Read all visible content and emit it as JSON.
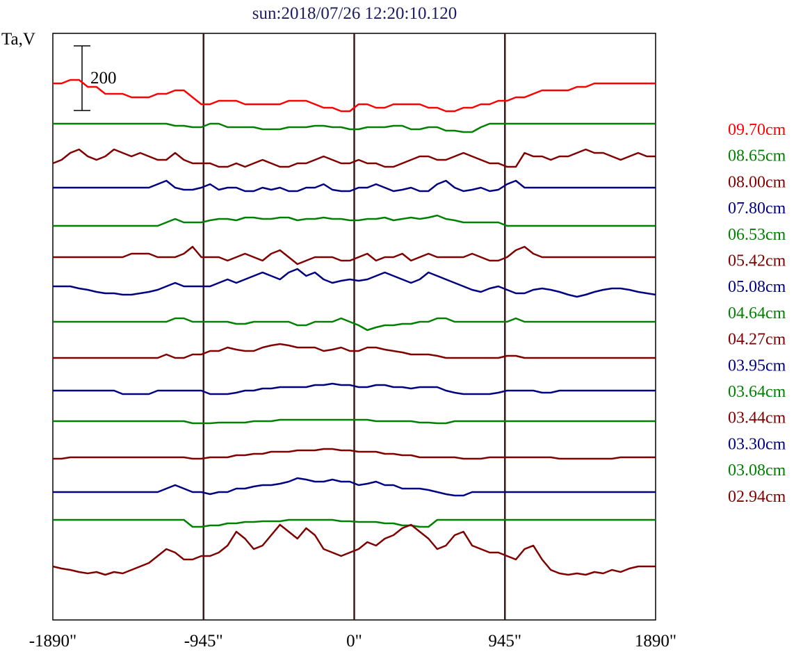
{
  "chart_data": {
    "type": "line",
    "title": "sun:2018/07/26 12:20:10.120",
    "ylabel": "Ta,V",
    "xlabel": "",
    "x_ticks": [
      "-1890\"",
      "-945\"",
      "0\"",
      "945\"",
      "1890\""
    ],
    "x_tick_values": [
      -1890,
      -945,
      0,
      945,
      1890
    ],
    "xlim": [
      -1890,
      1890
    ],
    "vertical_lines": [
      -945,
      0,
      945
    ],
    "scale_bar": {
      "label": "200",
      "value": 200
    },
    "colors": {
      "red": "#ff0000",
      "green": "#008000",
      "maroon": "#800000",
      "navy": "#000080",
      "axis": "#000000",
      "vline": "#3a1a1a",
      "title": "#1a1a66"
    },
    "series": [
      {
        "name": "09.70cm",
        "color": "#ff0000",
        "baseline": 120,
        "y": [
          0,
          0,
          5,
          5,
          -5,
          -5,
          -15,
          -15,
          -15,
          -20,
          -20,
          -20,
          -15,
          -15,
          -10,
          -10,
          -20,
          -30,
          -30,
          -25,
          -25,
          -25,
          -30,
          -30,
          -30,
          -30,
          -30,
          -25,
          -25,
          -25,
          -30,
          -35,
          -35,
          -40,
          -40,
          -30,
          -30,
          -35,
          -35,
          -30,
          -30,
          -30,
          -30,
          -35,
          -35,
          -40,
          -40,
          -35,
          -35,
          -30,
          -30,
          -25,
          -25,
          -20,
          -20,
          -15,
          -10,
          -10,
          -10,
          -10,
          -5,
          -5,
          0,
          0,
          0,
          0,
          0,
          0,
          0,
          0
        ]
      },
      {
        "name": "08.65cm",
        "color": "#008000",
        "baseline": 178,
        "y": [
          0,
          0,
          0,
          0,
          0,
          0,
          0,
          0,
          0,
          0,
          0,
          0,
          0,
          0,
          -3,
          -3,
          -5,
          -5,
          0,
          0,
          -5,
          -5,
          -5,
          -5,
          -8,
          -8,
          -8,
          -5,
          -5,
          -5,
          -3,
          -3,
          -5,
          -5,
          -8,
          -8,
          -5,
          -5,
          -5,
          -3,
          -3,
          -8,
          -8,
          -5,
          -5,
          -10,
          -10,
          -12,
          -12,
          -5,
          0,
          0,
          0,
          0,
          0,
          0,
          0,
          0,
          0,
          0,
          0,
          0,
          0,
          0,
          0,
          0,
          0,
          0,
          0,
          0
        ]
      },
      {
        "name": "08.00cm",
        "color": "#800000",
        "baseline": 225,
        "y": [
          -10,
          -5,
          5,
          10,
          0,
          -5,
          0,
          10,
          5,
          0,
          5,
          0,
          -5,
          -5,
          5,
          -5,
          -10,
          -10,
          -10,
          -15,
          -15,
          -10,
          -15,
          -10,
          -5,
          -10,
          -15,
          -15,
          -10,
          -10,
          -5,
          0,
          -5,
          -10,
          -10,
          -5,
          -10,
          -10,
          -15,
          -15,
          -10,
          -5,
          0,
          0,
          -5,
          -5,
          0,
          5,
          0,
          -5,
          -10,
          -10,
          -15,
          -15,
          5,
          0,
          0,
          -5,
          0,
          0,
          5,
          10,
          5,
          5,
          0,
          -5,
          0,
          5,
          0,
          0
        ]
      },
      {
        "name": "07.80cm",
        "color": "#000080",
        "baseline": 270,
        "y": [
          0,
          0,
          0,
          0,
          0,
          0,
          0,
          0,
          0,
          0,
          0,
          0,
          5,
          10,
          0,
          -3,
          -3,
          0,
          5,
          -3,
          0,
          0,
          -5,
          -5,
          0,
          -3,
          0,
          -5,
          -5,
          0,
          0,
          5,
          -3,
          -5,
          -5,
          0,
          0,
          5,
          0,
          -5,
          -3,
          0,
          -5,
          -5,
          5,
          10,
          0,
          -5,
          -3,
          0,
          -5,
          -3,
          5,
          10,
          0,
          0,
          0,
          0,
          0,
          0,
          0,
          0,
          0,
          0,
          0,
          0,
          0,
          0,
          0,
          0
        ]
      },
      {
        "name": "06.53cm",
        "color": "#008000",
        "baseline": 325,
        "y": [
          0,
          0,
          0,
          0,
          0,
          0,
          0,
          0,
          0,
          0,
          0,
          0,
          0,
          5,
          10,
          5,
          5,
          5,
          8,
          10,
          10,
          8,
          12,
          12,
          10,
          10,
          12,
          12,
          8,
          10,
          10,
          12,
          10,
          10,
          8,
          8,
          10,
          10,
          12,
          8,
          10,
          12,
          10,
          12,
          15,
          10,
          8,
          5,
          5,
          5,
          5,
          5,
          0,
          0,
          0,
          0,
          0,
          0,
          0,
          0,
          0,
          0,
          0,
          0,
          0,
          0,
          0,
          0,
          0,
          0
        ]
      },
      {
        "name": "05.42cm",
        "color": "#800000",
        "baseline": 370,
        "y": [
          0,
          0,
          0,
          0,
          0,
          0,
          0,
          0,
          0,
          5,
          5,
          5,
          0,
          0,
          0,
          5,
          15,
          0,
          0,
          0,
          -5,
          0,
          5,
          0,
          -5,
          5,
          10,
          0,
          -10,
          -5,
          0,
          0,
          0,
          -5,
          -5,
          0,
          5,
          -5,
          0,
          0,
          5,
          -5,
          0,
          5,
          0,
          0,
          0,
          0,
          5,
          0,
          -5,
          -5,
          0,
          10,
          15,
          5,
          0,
          0,
          0,
          0,
          0,
          0,
          0,
          0,
          0,
          0,
          0,
          0,
          0,
          0
        ]
      },
      {
        "name": "05.08cm",
        "color": "#000080",
        "baseline": 412,
        "y": [
          0,
          0,
          0,
          -3,
          -5,
          -8,
          -10,
          -10,
          -12,
          -12,
          -10,
          -8,
          -5,
          0,
          5,
          0,
          0,
          0,
          0,
          5,
          10,
          5,
          10,
          15,
          20,
          15,
          10,
          20,
          25,
          15,
          20,
          10,
          5,
          8,
          10,
          8,
          10,
          15,
          20,
          15,
          10,
          5,
          10,
          20,
          15,
          10,
          5,
          0,
          -5,
          -8,
          -3,
          0,
          -5,
          -10,
          -10,
          -5,
          -3,
          -5,
          -8,
          -12,
          -15,
          -12,
          -8,
          -5,
          -3,
          -3,
          -5,
          -8,
          -10,
          -12
        ]
      },
      {
        "name": "04.64cm",
        "color": "#008000",
        "baseline": 463,
        "y": [
          0,
          0,
          0,
          0,
          0,
          0,
          0,
          0,
          0,
          0,
          0,
          0,
          0,
          0,
          5,
          5,
          0,
          0,
          0,
          0,
          0,
          -3,
          -3,
          0,
          0,
          0,
          0,
          0,
          -5,
          -5,
          0,
          0,
          0,
          5,
          0,
          -5,
          -12,
          -8,
          -5,
          -5,
          -3,
          -3,
          0,
          0,
          5,
          5,
          0,
          0,
          0,
          0,
          0,
          0,
          0,
          5,
          0,
          0,
          0,
          0,
          0,
          0,
          0,
          0,
          0,
          0,
          0,
          0,
          0,
          0,
          0,
          0
        ]
      },
      {
        "name": "04.27cm",
        "color": "#800000",
        "baseline": 515,
        "y": [
          0,
          0,
          0,
          0,
          0,
          0,
          0,
          0,
          0,
          0,
          0,
          0,
          0,
          5,
          0,
          0,
          5,
          5,
          10,
          10,
          15,
          12,
          10,
          10,
          15,
          18,
          20,
          18,
          15,
          15,
          15,
          10,
          12,
          15,
          10,
          10,
          15,
          15,
          12,
          10,
          8,
          5,
          5,
          5,
          3,
          0,
          0,
          0,
          0,
          0,
          0,
          0,
          3,
          3,
          0,
          0,
          0,
          0,
          0,
          0,
          0,
          0,
          0,
          0,
          0,
          0,
          0,
          0,
          0,
          0
        ]
      },
      {
        "name": "03.95cm",
        "color": "#000080",
        "baseline": 562,
        "y": [
          0,
          0,
          0,
          0,
          0,
          0,
          0,
          0,
          -5,
          -5,
          -5,
          -5,
          0,
          0,
          0,
          0,
          0,
          0,
          -5,
          -5,
          -5,
          -3,
          0,
          0,
          3,
          3,
          5,
          5,
          5,
          5,
          8,
          8,
          10,
          8,
          8,
          5,
          5,
          8,
          8,
          5,
          5,
          3,
          5,
          5,
          5,
          0,
          -3,
          -5,
          -5,
          -5,
          -5,
          -3,
          0,
          0,
          0,
          0,
          -3,
          -3,
          0,
          0,
          0,
          0,
          0,
          0,
          0,
          0,
          0,
          0,
          0,
          0
        ]
      },
      {
        "name": "03.64cm",
        "color": "#008000",
        "baseline": 606,
        "y": [
          0,
          0,
          0,
          0,
          0,
          0,
          0,
          0,
          0,
          0,
          0,
          0,
          0,
          0,
          0,
          0,
          -3,
          -3,
          -3,
          -2,
          -2,
          -2,
          -2,
          0,
          0,
          0,
          2,
          2,
          2,
          2,
          2,
          2,
          2,
          2,
          2,
          2,
          2,
          0,
          0,
          0,
          0,
          0,
          -2,
          -2,
          -3,
          -3,
          0,
          0,
          0,
          0,
          0,
          0,
          0,
          0,
          0,
          0,
          0,
          0,
          0,
          0,
          0,
          0,
          0,
          0,
          0,
          0,
          0,
          0,
          0,
          0
        ]
      },
      {
        "name": "03.44cm",
        "color": "#800000",
        "baseline": 658,
        "y": [
          -2,
          -2,
          0,
          0,
          0,
          0,
          0,
          0,
          0,
          0,
          0,
          0,
          0,
          0,
          0,
          0,
          -2,
          -2,
          0,
          0,
          0,
          3,
          3,
          5,
          5,
          8,
          8,
          8,
          10,
          10,
          10,
          12,
          12,
          10,
          10,
          8,
          8,
          8,
          5,
          5,
          3,
          3,
          0,
          0,
          0,
          0,
          0,
          -2,
          -2,
          -2,
          0,
          0,
          0,
          0,
          0,
          0,
          0,
          0,
          -2,
          -2,
          -2,
          -2,
          -2,
          -2,
          -2,
          0,
          0,
          0,
          0,
          0
        ]
      },
      {
        "name": "03.30cm",
        "color": "#000080",
        "baseline": 708,
        "y": [
          0,
          0,
          0,
          0,
          0,
          0,
          0,
          0,
          0,
          0,
          0,
          0,
          0,
          5,
          10,
          5,
          0,
          0,
          -3,
          0,
          0,
          5,
          5,
          8,
          10,
          10,
          12,
          15,
          20,
          18,
          15,
          15,
          18,
          15,
          15,
          10,
          12,
          15,
          10,
          10,
          5,
          5,
          5,
          3,
          0,
          -3,
          -5,
          -5,
          0,
          0,
          0,
          0,
          0,
          0,
          0,
          0,
          0,
          0,
          0,
          0,
          0,
          0,
          0,
          0,
          0,
          0,
          0,
          0,
          0,
          0
        ]
      },
      {
        "name": "03.08cm",
        "color": "#008000",
        "baseline": 748,
        "y": [
          0,
          0,
          0,
          0,
          0,
          0,
          0,
          0,
          0,
          0,
          0,
          0,
          0,
          0,
          0,
          0,
          -10,
          -10,
          -8,
          -8,
          -5,
          -5,
          -3,
          -3,
          -2,
          -2,
          -2,
          0,
          0,
          0,
          0,
          0,
          0,
          -2,
          -2,
          -3,
          -3,
          -3,
          -5,
          -5,
          -8,
          -8,
          -10,
          -10,
          0,
          0,
          0,
          0,
          0,
          0,
          0,
          0,
          0,
          0,
          0,
          0,
          0,
          0,
          0,
          0,
          0,
          0,
          0,
          0,
          0,
          0,
          0,
          0,
          0,
          0
        ]
      },
      {
        "name": "02.94cm",
        "color": "#800000",
        "baseline": 815,
        "y": [
          0,
          -3,
          -5,
          -8,
          -10,
          -8,
          -12,
          -8,
          -10,
          -5,
          0,
          5,
          15,
          25,
          20,
          10,
          10,
          15,
          15,
          20,
          30,
          50,
          40,
          25,
          30,
          45,
          60,
          50,
          40,
          55,
          45,
          25,
          20,
          15,
          20,
          25,
          35,
          30,
          40,
          45,
          55,
          60,
          50,
          40,
          25,
          30,
          45,
          50,
          30,
          25,
          20,
          20,
          15,
          10,
          25,
          30,
          10,
          -5,
          -10,
          -12,
          -10,
          -12,
          -8,
          -10,
          -5,
          -8,
          -3,
          0,
          0,
          0
        ]
      }
    ]
  }
}
